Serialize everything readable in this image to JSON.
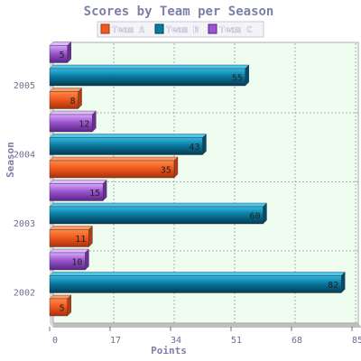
{
  "chart_data": {
    "type": "bar",
    "orientation": "horizontal",
    "title": "Scores by Team per Season",
    "xlabel": "Points",
    "ylabel": "Season",
    "categories": [
      "2005",
      "2004",
      "2003",
      "2002"
    ],
    "series": [
      {
        "name": "Team A",
        "values": [
          8,
          35,
          11,
          5
        ]
      },
      {
        "name": "Team B",
        "values": [
          55,
          43,
          60,
          82
        ]
      },
      {
        "name": "Team C",
        "values": [
          5,
          12,
          15,
          10
        ]
      }
    ],
    "xlim": [
      0,
      85
    ],
    "xticks": [
      "0",
      "17",
      "34",
      "51",
      "68",
      "85"
    ],
    "grid": true,
    "legend": "top",
    "colors": {
      "Team A": "#f05a1e",
      "Team B": "#0a7aa0",
      "Team C": "#9a55cc",
      "plot_background": "#eefdf0",
      "title": "#7d7fa8"
    }
  }
}
